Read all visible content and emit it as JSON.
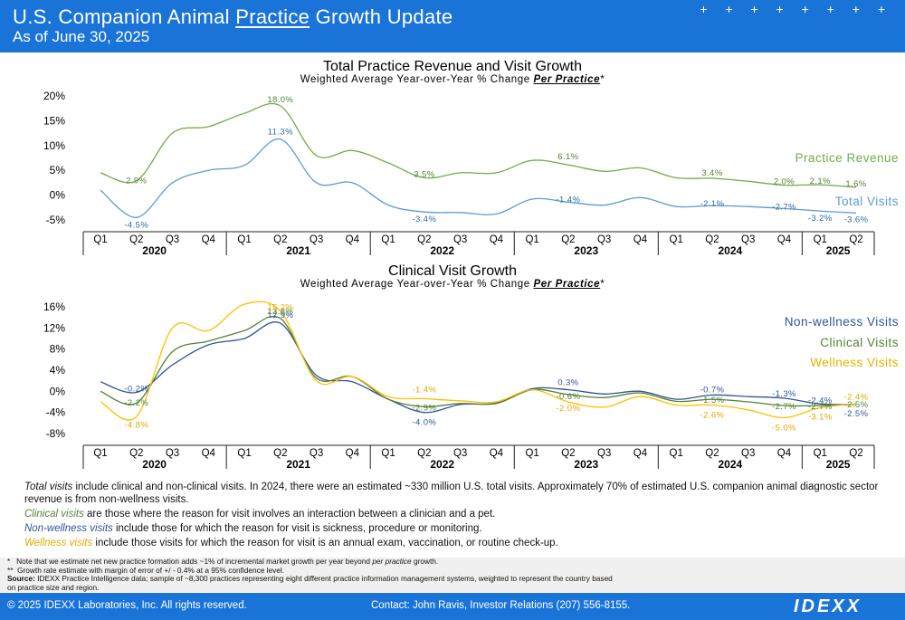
{
  "header": {
    "title_pre": "U.S. Companion Animal ",
    "title_underlined": "Practice",
    "title_post": " Growth Update",
    "subtitle": "As of June 30, 2025",
    "decoration": "+ + + + + + + +"
  },
  "colors": {
    "header_bg": "#1a74d8",
    "practice_revenue": "#70ad47",
    "total_visits": "#5b9bd5",
    "non_wellness": "#2f5597",
    "clinical": "#548235",
    "wellness": "#ffc000"
  },
  "chart_data": [
    {
      "type": "line",
      "title": "Total Practice Revenue and Visit Growth",
      "subtitle_pre": "Weighted Average Year-over-Year % Change ",
      "subtitle_em": "Per Practice",
      "subtitle_post": "*",
      "quarters": [
        "Q1",
        "Q2",
        "Q3",
        "Q4",
        "Q1",
        "Q2",
        "Q3",
        "Q4",
        "Q1",
        "Q2",
        "Q3",
        "Q4",
        "Q1",
        "Q2",
        "Q3",
        "Q4",
        "Q1",
        "Q2",
        "Q3",
        "Q4",
        "Q1",
        "Q2"
      ],
      "years": [
        "2020",
        "2021",
        "2022",
        "2023",
        "2024",
        "2025"
      ],
      "ylim": [
        -5,
        20
      ],
      "yticks": [
        -5,
        0,
        5,
        10,
        15,
        20
      ],
      "ytick_labels": [
        "-5%",
        "0%",
        "5%",
        "10%",
        "15%",
        "20%"
      ],
      "series": [
        {
          "name": "Practice Revenue",
          "color": "#70ad47",
          "values": [
            4.5,
            2.9,
            12.5,
            13.8,
            16.5,
            18.0,
            8.0,
            9.0,
            6.5,
            3.5,
            4.5,
            4.5,
            7.0,
            6.1,
            4.8,
            5.5,
            3.5,
            3.4,
            2.8,
            2.0,
            2.1,
            1.6
          ],
          "labels": {
            "1": "2.9%",
            "5": "18.0%",
            "9": "3.5%",
            "13": "6.1%",
            "17": "3.4%",
            "19": "2.0%",
            "20": "2.1%",
            "21": "1.6%"
          }
        },
        {
          "name": "Total Visits",
          "color": "#5b9bd5",
          "values": [
            1.0,
            -4.5,
            2.5,
            5.0,
            6.0,
            11.3,
            2.5,
            2.5,
            -2.0,
            -3.4,
            -3.5,
            -3.8,
            -0.8,
            -1.4,
            -2.0,
            -0.5,
            -2.3,
            -2.1,
            -2.3,
            -2.7,
            -3.2,
            -3.6
          ],
          "labels": {
            "1": "-4.5%",
            "5": "11.3%",
            "9": "-3.4%",
            "13": "-1.4%",
            "17": "-2.1%",
            "19": "-2.7%",
            "20": "-3.2%",
            "21": "-3.6%"
          }
        }
      ]
    },
    {
      "type": "line",
      "title": "Clinical Visit Growth",
      "subtitle_pre": "Weighted Average Year-over-Year % Change ",
      "subtitle_em": "Per Practice",
      "subtitle_post": "*",
      "quarters": [
        "Q1",
        "Q2",
        "Q3",
        "Q4",
        "Q1",
        "Q2",
        "Q3",
        "Q4",
        "Q1",
        "Q2",
        "Q3",
        "Q4",
        "Q1",
        "Q2",
        "Q3",
        "Q4",
        "Q1",
        "Q2",
        "Q3",
        "Q4",
        "Q1",
        "Q2"
      ],
      "years": [
        "2020",
        "2021",
        "2022",
        "2023",
        "2024",
        "2025"
      ],
      "ylim": [
        -8,
        16
      ],
      "yticks": [
        -8,
        -4,
        0,
        4,
        8,
        12,
        16
      ],
      "ytick_labels": [
        "-8%",
        "-4%",
        "0%",
        "4%",
        "8%",
        "12%",
        "16%"
      ],
      "series": [
        {
          "name": "Non-wellness Visits",
          "color": "#2f5597",
          "values": [
            1.8,
            -0.2,
            5.0,
            8.8,
            10.0,
            12.9,
            3.0,
            1.8,
            -1.5,
            -4.0,
            -2.5,
            -2.2,
            0.5,
            0.3,
            -0.5,
            0.0,
            -1.5,
            -0.7,
            -1.0,
            -1.3,
            -2.4,
            -2.5
          ],
          "labels": {
            "1": "-0.2%",
            "5": "12.9%",
            "9": "-4.0%",
            "13": "0.3%",
            "17": "-0.7%",
            "19": "-1.3%",
            "20": "-2.4%",
            "21": "-2.5%"
          }
        },
        {
          "name": "Clinical Visits",
          "color": "#548235",
          "values": [
            0.0,
            -2.2,
            7.5,
            9.5,
            11.5,
            13.8,
            2.5,
            2.8,
            -1.5,
            -2.9,
            -2.3,
            -2.3,
            0.3,
            -0.6,
            -1.2,
            -0.3,
            -1.9,
            -1.5,
            -2.0,
            -2.7,
            -2.7,
            -2.5
          ],
          "labels": {
            "1": "-2.2%",
            "5": "13.8%",
            "9": "-2.9%",
            "13": "-0.6%",
            "17": "-1.5%",
            "19": "-2.7%",
            "20": "-2.7%",
            "21": "-2.5%"
          }
        },
        {
          "name": "Wellness Visits",
          "color": "#ffc000",
          "values": [
            -2.0,
            -4.8,
            12.0,
            11.5,
            16.5,
            15.2,
            2.0,
            2.8,
            -1.0,
            -1.4,
            -1.8,
            -2.0,
            0.3,
            -2.0,
            -3.0,
            -1.0,
            -2.6,
            -2.6,
            -3.5,
            -5.0,
            -3.1,
            -2.4
          ],
          "labels": {
            "1": "-4.8%",
            "5": "15.2%",
            "9": "-1.4%",
            "13": "-2.0%",
            "17": "-2.6%",
            "19": "-5.0%",
            "20": "-3.1%",
            "21": "-2.4%"
          }
        }
      ]
    }
  ],
  "notes": {
    "total_lead": "Total visits",
    "total_text": " include clinical and non-clinical visits. In 2024, there were an estimated ~330 million U.S. total visits. Approximately 70% of estimated U.S. companion animal diagnostic sector revenue is from non-wellness visits.",
    "clinical_lead": "Clinical visits",
    "clinical_text": " are those where the reason for visit involves an interaction between a clinician and a pet.",
    "nonwell_lead": "Non-wellness visits",
    "nonwell_text": " include those for which the reason for visit is sickness, procedure or monitoring.",
    "well_lead": "Wellness visits",
    "well_text": " include those visits for which the reason for visit is an annual exam, vaccination, or routine check-up."
  },
  "fineprint": {
    "star1_mark": "*",
    "star1_text": "Note that we estimate net new practice formation adds ~1% of incremental market growth per year beyond ",
    "star1_em": "per practice",
    "star1_end": " growth.",
    "star2_mark": "**",
    "star2_text": "Growth rate estimate with margin of error of +/ - 0.4% at a 95% confidence level.",
    "source_label": "Source:",
    "source_text": " IDEXX Practice Intelligence data; sample of ~8,300 practices representing eight different practice information management systems, weighted to represent the country based",
    "source_text2": "on practice size and region."
  },
  "footer": {
    "copyright": "© 2025 IDEXX Laboratories, Inc. All rights reserved.",
    "contact": "Contact: John Ravis, Investor Relations (207) 556-8155.",
    "logo": "IDEXX"
  }
}
